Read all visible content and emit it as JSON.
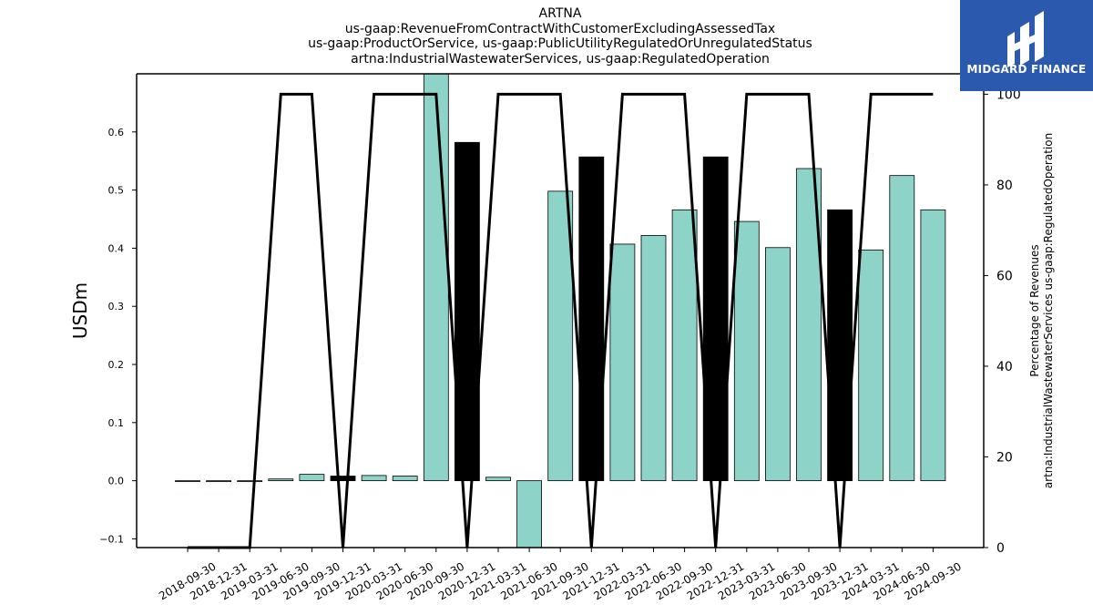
{
  "title_lines": [
    "ARTNA",
    "us-gaap:RevenueFromContractWithCustomerExcludingAssessedTax",
    "us-gaap:ProductOrService, us-gaap:PublicUtilityRegulatedOrUnregulatedStatus",
    "artna:IndustrialWastewaterServices, us-gaap:RegulatedOperation"
  ],
  "logo": {
    "text": "MIDGARD FINANCE",
    "color": "#2b59ad"
  },
  "colors": {
    "bar_default": "#8dd3c7",
    "bar_highlight": "#000000",
    "line": "#000000"
  },
  "chart_data": {
    "type": "bar",
    "categories": [
      "2018-09-30",
      "2018-12-31",
      "2019-03-31",
      "2019-06-30",
      "2019-09-30",
      "2019-12-31",
      "2020-03-31",
      "2020-06-30",
      "2020-09-30",
      "2020-12-31",
      "2021-03-31",
      "2021-06-30",
      "2021-09-30",
      "2021-12-31",
      "2022-03-31",
      "2022-06-30",
      "2022-09-30",
      "2022-12-31",
      "2023-03-31",
      "2023-06-30",
      "2023-09-30",
      "2023-12-31",
      "2024-03-31",
      "2024-06-30",
      "2024-09-30"
    ],
    "values": [
      0.0,
      0.0,
      0.0,
      0.003,
      0.011,
      0.008,
      0.009,
      0.008,
      0.71,
      0.582,
      0.006,
      -0.12,
      0.498,
      0.557,
      0.407,
      0.422,
      0.466,
      0.557,
      0.446,
      0.401,
      0.537,
      0.466,
      0.397,
      0.525,
      0.466
    ],
    "highlighted": [
      false,
      false,
      false,
      false,
      false,
      true,
      false,
      false,
      false,
      true,
      false,
      false,
      false,
      true,
      false,
      false,
      false,
      true,
      false,
      false,
      false,
      true,
      false,
      false,
      false
    ],
    "line_series": {
      "axis": "right",
      "values": [
        0,
        0,
        0,
        100,
        100,
        0,
        100,
        100,
        100,
        0,
        100,
        100,
        100,
        0,
        100,
        100,
        100,
        0,
        100,
        100,
        100,
        0,
        100,
        100,
        100
      ]
    },
    "ylabel": "USDm",
    "ylabel_right_lines": [
      "Percentage of Revenues",
      "artna:IndustrialWastewaterServices us-gaap:RegulatedOperation"
    ],
    "ylim": [
      -0.115,
      0.7
    ],
    "ylim_right": [
      0,
      104.5
    ],
    "yticks": [
      -0.1,
      0.0,
      0.1,
      0.2,
      0.3,
      0.4,
      0.5,
      0.6
    ],
    "ytick_labels": [
      "−0.1",
      "0.0",
      "0.1",
      "0.2",
      "0.3",
      "0.4",
      "0.5",
      "0.6"
    ],
    "yticks_right": [
      0,
      20,
      40,
      60,
      80,
      100
    ],
    "grid": false
  }
}
